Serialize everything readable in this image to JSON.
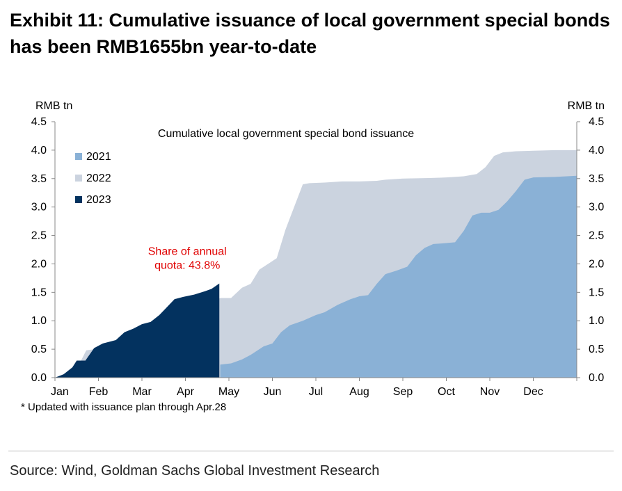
{
  "header": {
    "title_line1": "Exhibit 11: Cumulative issuance of local government special bonds",
    "title_line2": "has been RMB1655bn year-to-date"
  },
  "footnote": "* Updated with issuance plan through Apr.28",
  "source": "Source: Wind, Goldman Sachs Global Investment Research",
  "chart_data": {
    "type": "area",
    "title": "Cumulative local government special bond issuance",
    "ylabel_left": "RMB tn",
    "ylabel_right": "RMB tn",
    "ylim": [
      0,
      4.5
    ],
    "y_ticks": [
      "0.0",
      "0.5",
      "1.0",
      "1.5",
      "2.0",
      "2.5",
      "3.0",
      "3.5",
      "4.0",
      "4.5"
    ],
    "x_range": [
      0,
      12
    ],
    "x_ticks": [
      "Jan",
      "Feb",
      "Mar",
      "Apr",
      "May",
      "Jun",
      "Jul",
      "Aug",
      "Sep",
      "Oct",
      "Nov",
      "Dec"
    ],
    "grid": false,
    "legend_position": "top-left",
    "annotation": {
      "line1": "Share of annual",
      "line2": "quota: 43.8%",
      "color": "#e00000",
      "x": 3.78,
      "y": 1.9
    },
    "series": [
      {
        "name": "2022",
        "color": "#cbd3df",
        "points": [
          [
            0.0,
            0.0
          ],
          [
            0.1,
            0.02
          ],
          [
            0.25,
            0.08
          ],
          [
            0.45,
            0.2
          ],
          [
            0.6,
            0.3
          ],
          [
            0.72,
            0.48
          ],
          [
            0.9,
            0.5
          ],
          [
            1.1,
            0.52
          ],
          [
            1.3,
            0.58
          ],
          [
            1.5,
            0.64
          ],
          [
            1.8,
            0.7
          ],
          [
            2.0,
            0.78
          ],
          [
            2.3,
            0.86
          ],
          [
            2.6,
            0.96
          ],
          [
            2.9,
            1.06
          ],
          [
            3.2,
            1.16
          ],
          [
            3.5,
            1.26
          ],
          [
            3.75,
            1.38
          ],
          [
            3.8,
            1.4
          ],
          [
            4.05,
            1.4
          ],
          [
            4.3,
            1.58
          ],
          [
            4.5,
            1.65
          ],
          [
            4.7,
            1.9
          ],
          [
            4.9,
            2.0
          ],
          [
            5.1,
            2.1
          ],
          [
            5.3,
            2.6
          ],
          [
            5.5,
            3.0
          ],
          [
            5.7,
            3.4
          ],
          [
            5.85,
            3.42
          ],
          [
            6.2,
            3.43
          ],
          [
            6.6,
            3.45
          ],
          [
            7.0,
            3.45
          ],
          [
            7.4,
            3.46
          ],
          [
            7.6,
            3.48
          ],
          [
            8.0,
            3.5
          ],
          [
            8.6,
            3.51
          ],
          [
            9.0,
            3.52
          ],
          [
            9.4,
            3.54
          ],
          [
            9.7,
            3.58
          ],
          [
            9.9,
            3.7
          ],
          [
            10.1,
            3.9
          ],
          [
            10.3,
            3.96
          ],
          [
            10.6,
            3.98
          ],
          [
            11.0,
            3.99
          ],
          [
            11.5,
            4.0
          ],
          [
            12.0,
            4.0
          ]
        ]
      },
      {
        "name": "2021",
        "color": "#8ab1d6",
        "points": [
          [
            3.8,
            0.23
          ],
          [
            4.05,
            0.25
          ],
          [
            4.3,
            0.32
          ],
          [
            4.5,
            0.4
          ],
          [
            4.8,
            0.55
          ],
          [
            5.0,
            0.6
          ],
          [
            5.2,
            0.8
          ],
          [
            5.4,
            0.92
          ],
          [
            5.7,
            1.0
          ],
          [
            6.0,
            1.1
          ],
          [
            6.2,
            1.15
          ],
          [
            6.5,
            1.28
          ],
          [
            6.8,
            1.38
          ],
          [
            7.0,
            1.43
          ],
          [
            7.2,
            1.45
          ],
          [
            7.4,
            1.65
          ],
          [
            7.6,
            1.82
          ],
          [
            7.85,
            1.88
          ],
          [
            8.1,
            1.95
          ],
          [
            8.3,
            2.15
          ],
          [
            8.5,
            2.28
          ],
          [
            8.7,
            2.35
          ],
          [
            8.9,
            2.36
          ],
          [
            9.2,
            2.38
          ],
          [
            9.4,
            2.58
          ],
          [
            9.6,
            2.85
          ],
          [
            9.8,
            2.9
          ],
          [
            10.0,
            2.9
          ],
          [
            10.2,
            2.95
          ],
          [
            10.4,
            3.1
          ],
          [
            10.6,
            3.28
          ],
          [
            10.8,
            3.48
          ],
          [
            11.0,
            3.52
          ],
          [
            11.5,
            3.53
          ],
          [
            12.0,
            3.55
          ]
        ]
      },
      {
        "name": "2023",
        "color": "#03325f",
        "points": [
          [
            0.0,
            0.0
          ],
          [
            0.2,
            0.06
          ],
          [
            0.4,
            0.18
          ],
          [
            0.5,
            0.3
          ],
          [
            0.7,
            0.3
          ],
          [
            0.9,
            0.52
          ],
          [
            1.1,
            0.6
          ],
          [
            1.4,
            0.66
          ],
          [
            1.6,
            0.8
          ],
          [
            1.8,
            0.86
          ],
          [
            2.0,
            0.94
          ],
          [
            2.2,
            0.98
          ],
          [
            2.4,
            1.1
          ],
          [
            2.55,
            1.22
          ],
          [
            2.75,
            1.38
          ],
          [
            2.95,
            1.42
          ],
          [
            3.2,
            1.46
          ],
          [
            3.45,
            1.52
          ],
          [
            3.6,
            1.56
          ],
          [
            3.78,
            1.655
          ]
        ]
      }
    ],
    "series_order_legend": [
      "2021",
      "2022",
      "2023"
    ]
  }
}
